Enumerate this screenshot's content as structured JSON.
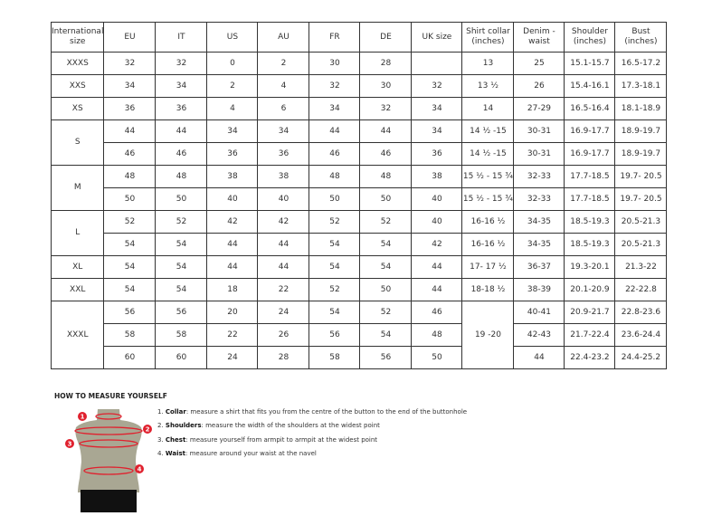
{
  "table": {
    "headers": [
      "International size",
      "EU",
      "IT",
      "US",
      "AU",
      "FR",
      "DE",
      "UK size",
      "Shirt collar (inches)",
      "Denim - waist",
      "Shoulder (inches)",
      "Bust (inches)"
    ],
    "groups": [
      {
        "size": "XXXS",
        "rows": [
          [
            "32",
            "32",
            "0",
            "2",
            "30",
            "28",
            "",
            "13",
            "25",
            "15.1-15.7",
            "16.5-17.2"
          ]
        ]
      },
      {
        "size": "XXS",
        "rows": [
          [
            "34",
            "34",
            "2",
            "4",
            "32",
            "30",
            "32",
            "13 ½",
            "26",
            "15.4-16.1",
            "17.3-18.1"
          ]
        ]
      },
      {
        "size": "XS",
        "rows": [
          [
            "36",
            "36",
            "4",
            "6",
            "34",
            "32",
            "34",
            "14",
            "27-29",
            "16.5-16.4",
            "18.1-18.9"
          ]
        ]
      },
      {
        "size": "S",
        "rows": [
          [
            "44",
            "44",
            "34",
            "34",
            "44",
            "44",
            "34",
            "14 ½ -15",
            "30-31",
            "16.9-17.7",
            "18.9-19.7"
          ],
          [
            "46",
            "46",
            "36",
            "36",
            "46",
            "46",
            "36",
            "14 ½ -15",
            "30-31",
            "16.9-17.7",
            "18.9-19.7"
          ]
        ]
      },
      {
        "size": "M",
        "rows": [
          [
            "48",
            "48",
            "38",
            "38",
            "48",
            "48",
            "38",
            "15 ½ - 15 ¾",
            "32-33",
            "17.7-18.5",
            "19.7- 20.5"
          ],
          [
            "50",
            "50",
            "40",
            "40",
            "50",
            "50",
            "40",
            "15 ½ - 15 ¾",
            "32-33",
            "17.7-18.5",
            "19.7- 20.5"
          ]
        ]
      },
      {
        "size": "L",
        "rows": [
          [
            "52",
            "52",
            "42",
            "42",
            "52",
            "52",
            "40",
            "16-16 ½",
            "34-35",
            "18.5-19.3",
            "20.5-21.3"
          ],
          [
            "54",
            "54",
            "44",
            "44",
            "54",
            "54",
            "42",
            "16-16 ½",
            "34-35",
            "18.5-19.3",
            "20.5-21.3"
          ]
        ]
      },
      {
        "size": "XL",
        "rows": [
          [
            "54",
            "54",
            "44",
            "44",
            "54",
            "54",
            "44",
            "17- 17 ½",
            "36-37",
            "19.3-20.1",
            "21.3-22"
          ]
        ]
      },
      {
        "size": "XXL",
        "rows": [
          [
            "54",
            "54",
            "18",
            "22",
            "52",
            "50",
            "44",
            "18-18 ½",
            "38-39",
            "20.1-20.9",
            "22-22.8"
          ]
        ]
      },
      {
        "size": "XXXL",
        "collar": "19 -20",
        "rows": [
          [
            "56",
            "56",
            "20",
            "24",
            "54",
            "52",
            "46",
            "40-41",
            "20.9-21.7",
            "22.8-23.6"
          ],
          [
            "58",
            "58",
            "22",
            "26",
            "56",
            "54",
            "48",
            "42-43",
            "21.7-22.4",
            "23.6-24.4"
          ],
          [
            "60",
            "60",
            "24",
            "28",
            "58",
            "56",
            "50",
            "44",
            "22.4-23.2",
            "24.4-25.2"
          ]
        ]
      }
    ]
  },
  "howto": {
    "title": "HOW TO MEASURE YOURSELF",
    "markers": [
      "1",
      "2",
      "3",
      "4"
    ],
    "steps": [
      {
        "num": "1.",
        "term": "Collar",
        "text": ": measure a shirt that fits you from the centre of the button to the end of the buttonhole"
      },
      {
        "num": "2.",
        "term": "Shoulders",
        "text": ": measure the width of the shoulders at the widest point"
      },
      {
        "num": "3.",
        "term": "Chest",
        "text": ": measure yourself from armpit to armpit at the widest point"
      },
      {
        "num": "4.",
        "term": "Waist",
        "text": ": measure around your waist at the navel"
      }
    ]
  },
  "colors": {
    "accent": "#e0212e",
    "torso": "#a9a793",
    "shorts": "#111111"
  }
}
